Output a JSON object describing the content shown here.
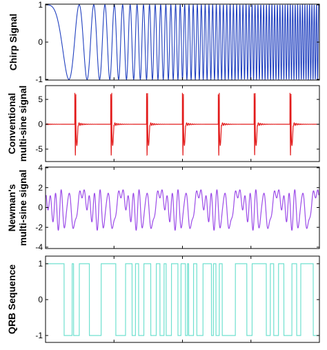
{
  "chart_data": [
    {
      "type": "line",
      "ylabel": [
        "Chirp Signal"
      ],
      "yticks": [
        1,
        0,
        -1
      ],
      "ylim": [
        -1,
        1
      ],
      "xticks": 3,
      "grid": false,
      "color": "#1f3fbf",
      "series": [
        {
          "signal": "chirp",
          "amplitude": 1,
          "description_values": {
            "min": -1,
            "max": 1
          }
        }
      ]
    },
    {
      "type": "line",
      "ylabel": [
        "Conventional",
        "multi-sine signal"
      ],
      "yticks": [
        5,
        0,
        -5
      ],
      "ylim": [
        -7.5,
        7.5
      ],
      "xticks": 3,
      "grid": false,
      "color": "#e21a1a",
      "series": [
        {
          "signal": "conventional-multisine",
          "peak": 6.3,
          "trough": -6.6,
          "periods": 8
        }
      ]
    },
    {
      "type": "line",
      "ylabel": [
        "Newman's",
        "multi-sine signal"
      ],
      "yticks": [
        4,
        2,
        0,
        -2,
        -4
      ],
      "ylim": [
        -4.3,
        4.3
      ],
      "xticks": 3,
      "grid": false,
      "color": "#9b4ae8",
      "series": [
        {
          "signal": "newman-multisine",
          "peak": 3.9,
          "trough": -4.0,
          "periods": 7
        }
      ]
    },
    {
      "type": "line",
      "ylabel": [
        "QRB Sequence"
      ],
      "yticks": [
        1,
        0,
        -1
      ],
      "ylim": [
        -1.1,
        1.1
      ],
      "xticks": 3,
      "grid": false,
      "color": "#6fe0cf",
      "series": [
        {
          "signal": "quasi-random-binary",
          "levels": [
            1,
            -1
          ]
        }
      ]
    }
  ]
}
